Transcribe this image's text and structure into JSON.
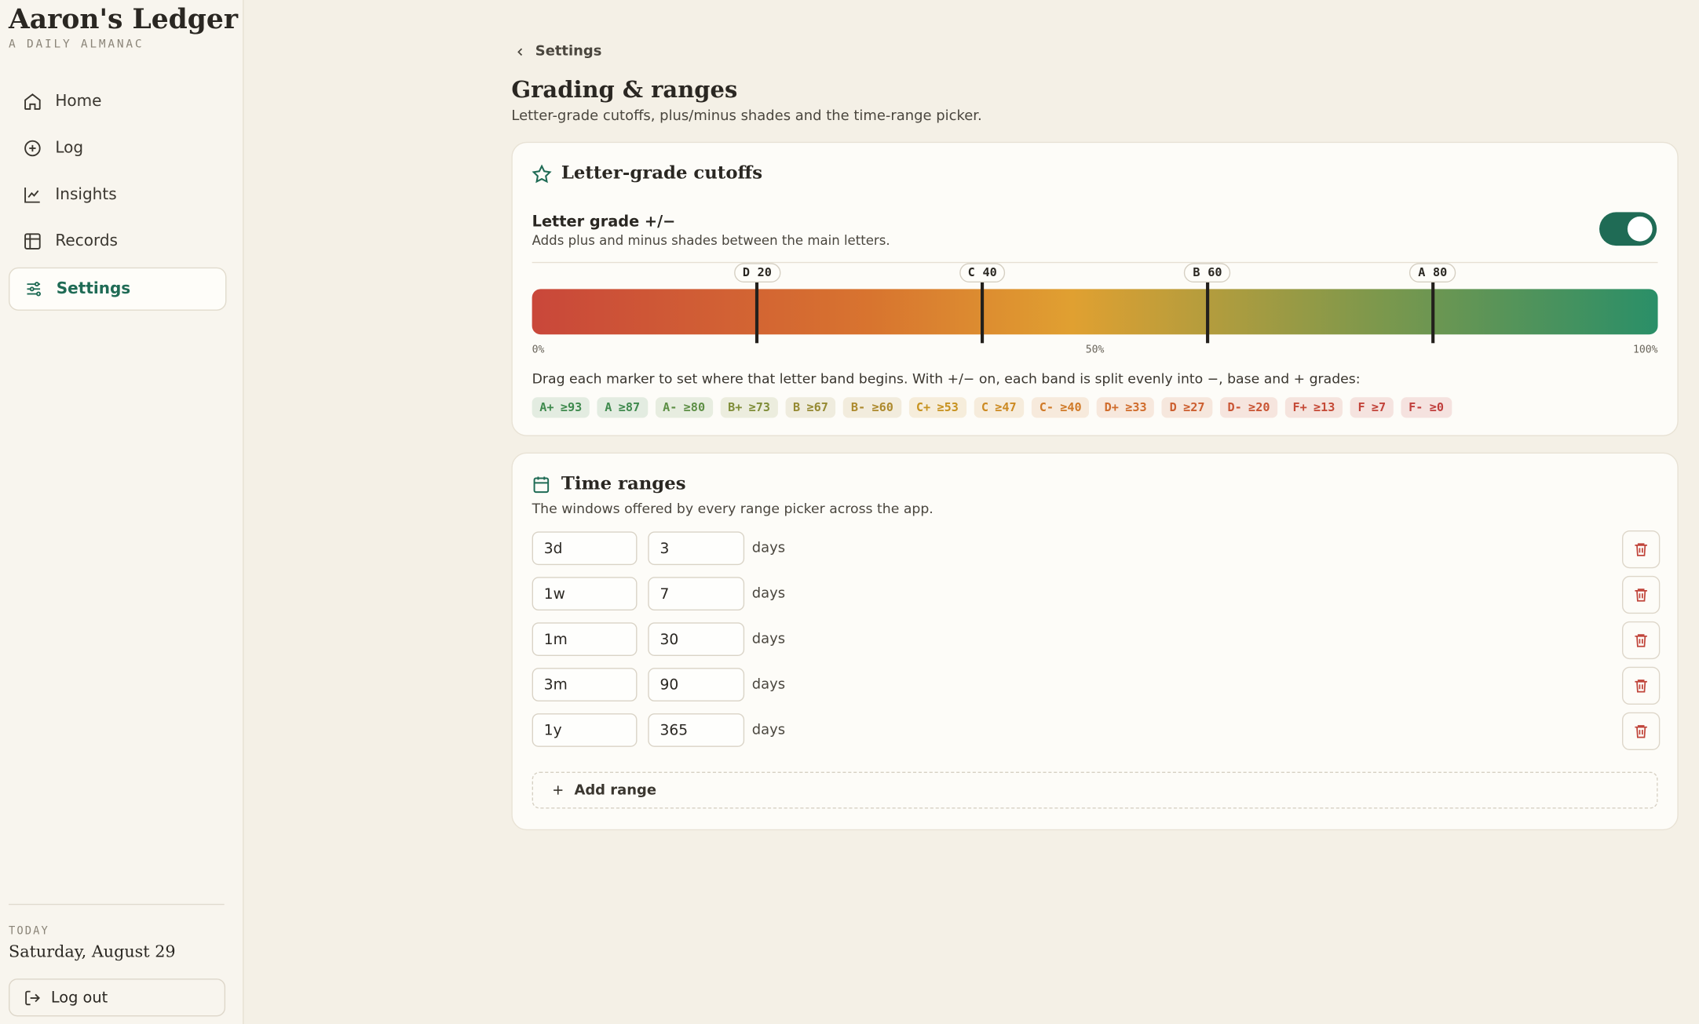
{
  "sidebar": {
    "brand": "Aaron's Ledger",
    "tagline": "A DAILY ALMANAC",
    "nav": [
      {
        "label": "Home",
        "active": false
      },
      {
        "label": "Log",
        "active": false
      },
      {
        "label": "Insights",
        "active": false
      },
      {
        "label": "Records",
        "active": false
      },
      {
        "label": "Settings",
        "active": true
      }
    ],
    "today_label": "TODAY",
    "today_date": "Saturday, August 29",
    "logout": "Log out"
  },
  "header": {
    "back": "Settings",
    "title": "Grading & ranges",
    "subtitle": "Letter-grade cutoffs, plus/minus shades and the time-range picker."
  },
  "grading": {
    "title": "Letter-grade cutoffs",
    "toggle_label": "Letter grade +/−",
    "toggle_desc": "Adds plus and minus shades between the main letters.",
    "toggle_on": true,
    "scale": [
      {
        "value": 0,
        "label": "0%"
      },
      {
        "value": 50,
        "label": "50%"
      },
      {
        "value": 100,
        "label": "100%"
      }
    ],
    "markers": [
      {
        "letter": "D",
        "value": 20
      },
      {
        "letter": "C",
        "value": 40
      },
      {
        "letter": "B",
        "value": 60
      },
      {
        "letter": "A",
        "value": 80
      }
    ],
    "help": "Drag each marker to set where that letter band begins. With +/− on, each band is split evenly into −, base and + grades:",
    "chips": [
      {
        "grade": "A+",
        "cutoff": "≥93",
        "color": "#3f8a4e"
      },
      {
        "grade": "A",
        "cutoff": "≥87",
        "color": "#3f8a4e"
      },
      {
        "grade": "A-",
        "cutoff": "≥80",
        "color": "#5d8f45"
      },
      {
        "grade": "B+",
        "cutoff": "≥73",
        "color": "#7f8d38"
      },
      {
        "grade": "B",
        "cutoff": "≥67",
        "color": "#968a33"
      },
      {
        "grade": "B-",
        "cutoff": "≥60",
        "color": "#ad8a2e"
      },
      {
        "grade": "C+",
        "cutoff": "≥53",
        "color": "#c7921f"
      },
      {
        "grade": "C",
        "cutoff": "≥47",
        "color": "#cc8a22"
      },
      {
        "grade": "C-",
        "cutoff": "≥40",
        "color": "#d07a28"
      },
      {
        "grade": "D+",
        "cutoff": "≥33",
        "color": "#d06c2c"
      },
      {
        "grade": "D",
        "cutoff": "≥27",
        "color": "#cc5f30"
      },
      {
        "grade": "D-",
        "cutoff": "≥20",
        "color": "#c95433"
      },
      {
        "grade": "F+",
        "cutoff": "≥13",
        "color": "#c54a37"
      },
      {
        "grade": "F",
        "cutoff": "≥7",
        "color": "#c2433a"
      },
      {
        "grade": "F-",
        "cutoff": "≥0",
        "color": "#c03e3c"
      }
    ]
  },
  "ranges": {
    "title": "Time ranges",
    "desc": "The windows offered by every range picker across the app.",
    "rows": [
      {
        "label": "3d",
        "days": 3,
        "unit": "days"
      },
      {
        "label": "1w",
        "days": 7,
        "unit": "days"
      },
      {
        "label": "1m",
        "days": 30,
        "unit": "days"
      },
      {
        "label": "3m",
        "days": 90,
        "unit": "days"
      },
      {
        "label": "1y",
        "days": 365,
        "unit": "days"
      }
    ],
    "add": "Add range"
  }
}
